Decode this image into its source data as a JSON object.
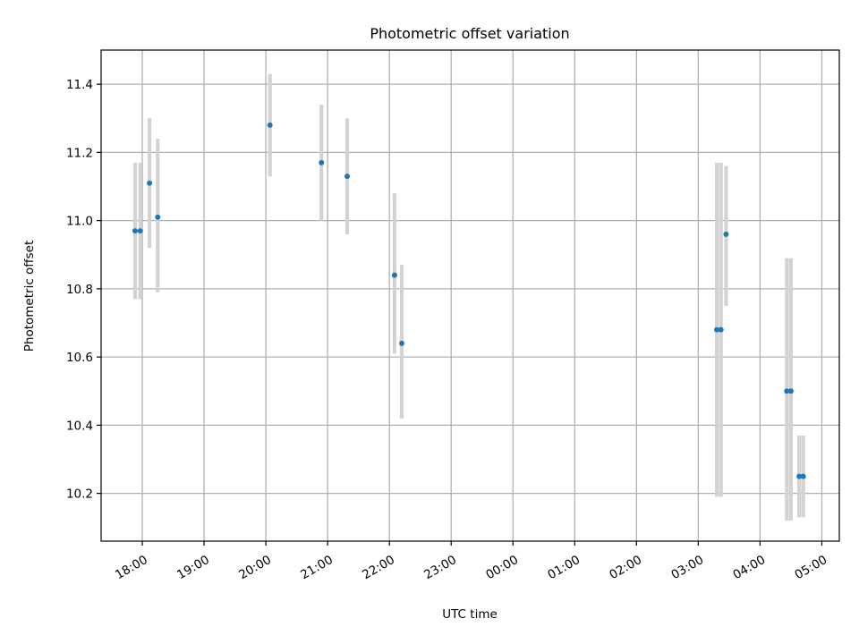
{
  "chart_data": {
    "type": "scatter",
    "title": "Photometric offset variation",
    "xlabel": "UTC time",
    "ylabel": "Photometric offset",
    "x_type": "time",
    "x_tick_labels": [
      "18:00",
      "19:00",
      "20:00",
      "21:00",
      "22:00",
      "23:00",
      "00:00",
      "01:00",
      "02:00",
      "03:00",
      "04:00",
      "05:00"
    ],
    "x_tick_times": [
      "18:00",
      "19:00",
      "20:00",
      "21:00",
      "22:00",
      "23:00",
      "24:00",
      "25:00",
      "26:00",
      "27:00",
      "28:00",
      "29:00"
    ],
    "xlim": [
      "17:20",
      "29:17"
    ],
    "ylim": [
      10.06,
      11.5
    ],
    "y_ticks": [
      10.2,
      10.4,
      10.6,
      10.8,
      11.0,
      11.2,
      11.4
    ],
    "grid": true,
    "colors": {
      "points": "#1f77b4",
      "error_bars": "#d3d3d3",
      "grid": "#b0b0b0"
    },
    "points": [
      {
        "x": "17:53",
        "y": 10.97,
        "err_low": 10.77,
        "err_high": 11.17
      },
      {
        "x": "17:58",
        "y": 10.97,
        "err_low": 10.77,
        "err_high": 11.17
      },
      {
        "x": "18:07",
        "y": 11.11,
        "err_low": 10.92,
        "err_high": 11.3
      },
      {
        "x": "18:15",
        "y": 11.01,
        "err_low": 10.79,
        "err_high": 11.24
      },
      {
        "x": "20:04",
        "y": 11.28,
        "err_low": 11.13,
        "err_high": 11.43
      },
      {
        "x": "20:54",
        "y": 11.17,
        "err_low": 11.0,
        "err_high": 11.34
      },
      {
        "x": "21:19",
        "y": 11.13,
        "err_low": 10.96,
        "err_high": 11.3
      },
      {
        "x": "22:05",
        "y": 10.84,
        "err_low": 10.61,
        "err_high": 11.08
      },
      {
        "x": "22:12",
        "y": 10.64,
        "err_low": 10.42,
        "err_high": 10.87
      },
      {
        "x": "27:18",
        "y": 10.68,
        "err_low": 10.19,
        "err_high": 11.17
      },
      {
        "x": "27:22",
        "y": 10.68,
        "err_low": 10.19,
        "err_high": 11.17
      },
      {
        "x": "27:27",
        "y": 10.96,
        "err_low": 10.75,
        "err_high": 11.16
      },
      {
        "x": "28:26",
        "y": 10.5,
        "err_low": 10.12,
        "err_high": 10.89
      },
      {
        "x": "28:30",
        "y": 10.5,
        "err_low": 10.12,
        "err_high": 10.89
      },
      {
        "x": "28:38",
        "y": 10.25,
        "err_low": 10.13,
        "err_high": 10.37
      },
      {
        "x": "28:42",
        "y": 10.25,
        "err_low": 10.13,
        "err_high": 10.37
      }
    ]
  }
}
